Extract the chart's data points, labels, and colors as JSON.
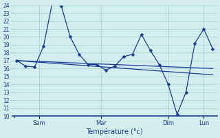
{
  "title": "Température (°c)",
  "background_color": "#d4eeed",
  "line_color": "#1a3a9a",
  "ylim": [
    10,
    24
  ],
  "yticks": [
    10,
    11,
    12,
    13,
    14,
    15,
    16,
    17,
    18,
    19,
    20,
    21,
    22,
    23,
    24
  ],
  "x_labels": [
    "Sam",
    "Mar",
    "Dim",
    "Lun"
  ],
  "grid_color": "#9ecece",
  "marker_size": 2.5,
  "series1_x": [
    0,
    1,
    2,
    3,
    4,
    5,
    6,
    7,
    8,
    9,
    10,
    11,
    12,
    13,
    14,
    15,
    16,
    17,
    18,
    19,
    20,
    21,
    22
  ],
  "series1_y": [
    17,
    16.3,
    16.2,
    18.8,
    24.4,
    23.9,
    20.0,
    17.8,
    16.5,
    16.5,
    15.8,
    16.3,
    17.5,
    17.8,
    20.3,
    18.3,
    16.5,
    14.0,
    10.2,
    13.0,
    19.2,
    21.0,
    18.5
  ],
  "series2_x": [
    0,
    22
  ],
  "series2_y": [
    17.0,
    16.0
  ],
  "series3_x": [
    0,
    22
  ],
  "series3_y": [
    17.0,
    15.2
  ],
  "x_tick_data": [
    2.5,
    9.5,
    17.0,
    21.0
  ],
  "xlim": [
    -0.5,
    22.5
  ]
}
